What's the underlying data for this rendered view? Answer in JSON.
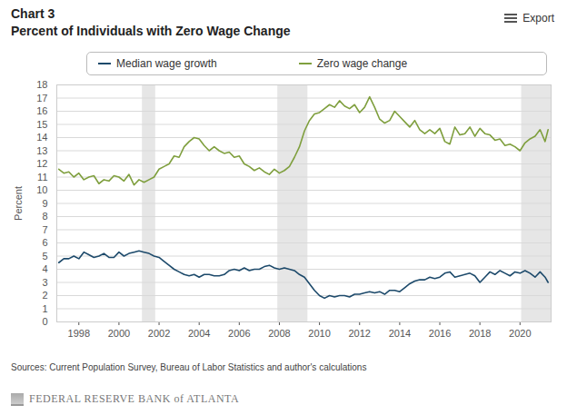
{
  "chart_data": {
    "type": "line",
    "title": "Chart 3",
    "subtitle": "Percent of Individuals with Zero Wage Change",
    "export_button": "Export",
    "y_label": "Percent",
    "source": "Sources: Current Population Survey, Bureau of Labor Statistics and author's calculations",
    "footer": "FEDERAL RESERVE BANK of ATLANTA",
    "legend": "top",
    "grid": true,
    "xlim": [
      1996.9,
      2021.55
    ],
    "xticks": [
      1998,
      2000,
      2002,
      2004,
      2006,
      2008,
      2010,
      2012,
      2014,
      2016,
      2018,
      2020
    ],
    "ylim": [
      0,
      18
    ],
    "yticks": [
      0,
      1,
      2,
      3,
      4,
      5,
      6,
      7,
      8,
      9,
      10,
      11,
      12,
      13,
      14,
      15,
      16,
      17,
      18
    ],
    "shaded_periods": [
      [
        2001.17,
        2001.83
      ],
      [
        2007.92,
        2009.42
      ],
      [
        2020.08,
        2021.55
      ]
    ],
    "x": [
      1997.0,
      1997.25,
      1997.5,
      1997.75,
      1998.0,
      1998.25,
      1998.5,
      1998.75,
      1999.0,
      1999.25,
      1999.5,
      1999.75,
      2000.0,
      2000.25,
      2000.5,
      2000.75,
      2001.0,
      2001.25,
      2001.5,
      2001.75,
      2002.0,
      2002.25,
      2002.5,
      2002.75,
      2003.0,
      2003.25,
      2003.5,
      2003.75,
      2004.0,
      2004.25,
      2004.5,
      2004.75,
      2005.0,
      2005.25,
      2005.5,
      2005.75,
      2006.0,
      2006.25,
      2006.5,
      2006.75,
      2007.0,
      2007.25,
      2007.5,
      2007.75,
      2008.0,
      2008.25,
      2008.5,
      2008.75,
      2009.0,
      2009.25,
      2009.5,
      2009.75,
      2010.0,
      2010.25,
      2010.5,
      2010.75,
      2011.0,
      2011.25,
      2011.5,
      2011.75,
      2012.0,
      2012.25,
      2012.5,
      2012.75,
      2013.0,
      2013.25,
      2013.5,
      2013.75,
      2014.0,
      2014.25,
      2014.5,
      2014.75,
      2015.0,
      2015.25,
      2015.5,
      2015.75,
      2016.0,
      2016.25,
      2016.5,
      2016.75,
      2017.0,
      2017.25,
      2017.5,
      2017.75,
      2018.0,
      2018.25,
      2018.5,
      2018.75,
      2019.0,
      2019.25,
      2019.5,
      2019.75,
      2020.0,
      2020.25,
      2020.5,
      2020.75,
      2021.0,
      2021.25,
      2021.4
    ],
    "series": [
      {
        "name": "Median wage growth",
        "color": "#1d4a6b",
        "values": [
          4.5,
          4.8,
          4.8,
          5.0,
          4.8,
          5.3,
          5.1,
          4.9,
          5.0,
          5.2,
          4.9,
          4.9,
          5.3,
          5.0,
          5.2,
          5.3,
          5.4,
          5.3,
          5.2,
          5.0,
          4.9,
          4.6,
          4.3,
          4.0,
          3.8,
          3.6,
          3.5,
          3.6,
          3.4,
          3.6,
          3.6,
          3.5,
          3.5,
          3.6,
          3.9,
          4.0,
          3.9,
          4.1,
          3.9,
          4.0,
          4.0,
          4.2,
          4.3,
          4.1,
          4.0,
          4.1,
          4.0,
          3.9,
          3.6,
          3.4,
          2.9,
          2.4,
          2.0,
          1.8,
          2.0,
          1.9,
          2.0,
          2.0,
          1.9,
          2.1,
          2.1,
          2.2,
          2.3,
          2.2,
          2.3,
          2.1,
          2.4,
          2.4,
          2.3,
          2.6,
          2.9,
          3.1,
          3.2,
          3.2,
          3.4,
          3.3,
          3.4,
          3.7,
          3.8,
          3.4,
          3.5,
          3.6,
          3.7,
          3.5,
          3.0,
          3.4,
          3.8,
          3.6,
          3.9,
          3.7,
          3.5,
          3.8,
          3.7,
          3.9,
          3.7,
          3.4,
          3.8,
          3.4,
          3.0
        ]
      },
      {
        "name": "Zero wage change",
        "color": "#7f9f3e",
        "values": [
          11.6,
          11.3,
          11.4,
          11.0,
          11.3,
          10.8,
          11.0,
          11.1,
          10.5,
          10.8,
          10.7,
          11.1,
          11.0,
          10.7,
          11.2,
          10.4,
          10.8,
          10.6,
          10.8,
          11.0,
          11.6,
          11.8,
          12.0,
          12.6,
          12.5,
          13.3,
          13.7,
          14.0,
          13.9,
          13.4,
          13.0,
          13.3,
          13.0,
          12.8,
          12.9,
          12.5,
          12.6,
          12.0,
          11.8,
          11.5,
          11.7,
          11.4,
          11.2,
          11.6,
          11.3,
          11.5,
          11.8,
          12.5,
          13.3,
          14.5,
          15.3,
          15.8,
          15.9,
          16.2,
          16.5,
          16.3,
          16.8,
          16.4,
          16.2,
          16.5,
          15.9,
          16.3,
          17.1,
          16.3,
          15.4,
          15.1,
          15.3,
          16.0,
          15.6,
          15.2,
          14.8,
          15.3,
          14.6,
          14.3,
          14.6,
          14.3,
          14.7,
          13.7,
          13.5,
          14.8,
          14.2,
          14.3,
          14.8,
          14.1,
          14.7,
          14.3,
          14.2,
          13.8,
          13.9,
          13.4,
          13.5,
          13.3,
          13.0,
          13.6,
          13.9,
          14.1,
          14.6,
          13.7,
          14.6
        ]
      }
    ]
  }
}
